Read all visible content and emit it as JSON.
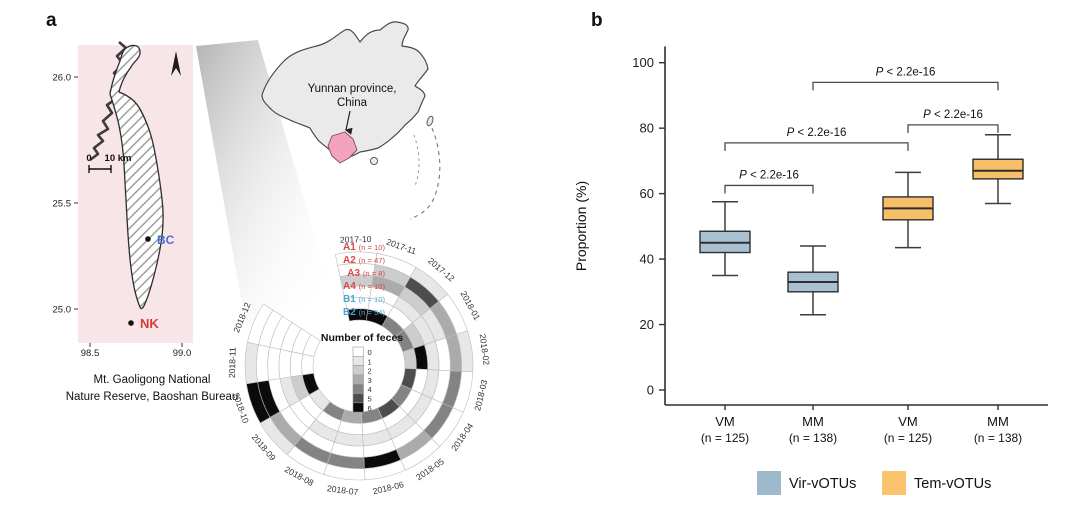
{
  "figure": {
    "panel_a_label": "a",
    "panel_b_label": "b"
  },
  "panel_a": {
    "map": {
      "bg_color": "#f8e5e7",
      "lat_ticks": [
        "26.0",
        "25.5",
        "25.0"
      ],
      "lon_ticks": [
        "98.5",
        "99.0"
      ],
      "scale_zero": "0",
      "scale_label": "10 km",
      "sites": [
        {
          "label": "BC",
          "color": "#4a6fd4"
        },
        {
          "label": "NK",
          "color": "#d93a3a"
        }
      ],
      "caption_line1": "Mt. Gaoligong National",
      "caption_line2": "Nature Reserve, Baoshan Bureau",
      "north_icon": "north-arrow"
    },
    "china_inset": {
      "label_line1": "Yunnan province,",
      "label_line2": "China",
      "fill": "#eaeaea",
      "outline": "#4a4a4a",
      "yunnan_fill": "#f3a3be"
    }
  },
  "chart_data": [
    {
      "type": "heatmap",
      "subtype": "circular",
      "legend_title": "Number of feces",
      "value_scale": {
        "min": 0,
        "max": 6,
        "labels": [
          "0",
          "1",
          "2",
          "3",
          "4",
          "5",
          "6"
        ],
        "colors": [
          "#ffffff",
          "#e7e7e7",
          "#cdcdcd",
          "#ababab",
          "#838383",
          "#4d4d4d",
          "#0b0b0b"
        ]
      },
      "months": [
        "2017-10",
        "2017-11",
        "2017-12",
        "2018-01",
        "2018-02",
        "2018-03",
        "2018-04",
        "2018-05",
        "2018-06",
        "2018-07",
        "2018-08",
        "2018-09",
        "2018-10",
        "2018-11",
        "2018-12"
      ],
      "rings": [
        {
          "name": "A1",
          "n_label": "(n = 10)",
          "label_color": "#d94848",
          "values": [
            0,
            0,
            1,
            0,
            1,
            0,
            0,
            0,
            0,
            0,
            0,
            1,
            6,
            1,
            0
          ]
        },
        {
          "name": "A2",
          "n_label": "(n = 47)",
          "label_color": "#d94848",
          "values": [
            0,
            2,
            5,
            3,
            3,
            4,
            4,
            3,
            6,
            4,
            4,
            3,
            6,
            0,
            0
          ]
        },
        {
          "name": "A3",
          "n_label": "(n = 8)",
          "label_color": "#d94848",
          "values": [
            2,
            3,
            2,
            1,
            0,
            0,
            0,
            0,
            0,
            0,
            0,
            0,
            0,
            0,
            0
          ]
        },
        {
          "name": "A4",
          "n_label": "(n = 10)",
          "label_color": "#d94848",
          "values": [
            0,
            0,
            1,
            1,
            1,
            1,
            1,
            1,
            1,
            1,
            1,
            0,
            1,
            0,
            0
          ]
        },
        {
          "name": "B1",
          "n_label": "(n = 10)",
          "label_color": "#4fa8cf",
          "values": [
            0,
            0,
            0,
            2,
            6,
            0,
            0,
            0,
            0,
            0,
            0,
            0,
            2,
            0,
            0
          ]
        },
        {
          "name": "B2",
          "n_label": "(n = 54)",
          "label_color": "#4fa8cf",
          "values": [
            6,
            6,
            4,
            4,
            2,
            5,
            4,
            5,
            4,
            3,
            4,
            1,
            6,
            0,
            0
          ]
        }
      ]
    },
    {
      "type": "boxplot",
      "ylabel": "Proportion (%)",
      "ylim": [
        0,
        105
      ],
      "yticks": [
        0,
        20,
        40,
        60,
        80,
        100
      ],
      "grid": false,
      "categories": [
        "VM",
        "MM",
        "VM",
        "MM"
      ],
      "category_sublabels": [
        "(n = 125)",
        "(n = 138)",
        "(n = 125)",
        "(n = 138)"
      ],
      "boxes": [
        {
          "group": "Vir-vOTUs",
          "whisker_low": 35,
          "q1": 42,
          "median": 45,
          "q3": 48.5,
          "whisker_high": 57.5
        },
        {
          "group": "Vir-vOTUs",
          "whisker_low": 23,
          "q1": 30,
          "median": 33,
          "q3": 36,
          "whisker_high": 44
        },
        {
          "group": "Tem-vOTUs",
          "whisker_low": 43.5,
          "q1": 52,
          "median": 55.5,
          "q3": 59,
          "whisker_high": 66.5
        },
        {
          "group": "Tem-vOTUs",
          "whisker_low": 57,
          "q1": 64.5,
          "median": 67,
          "q3": 70.5,
          "whisker_high": 78
        }
      ],
      "comparisons": [
        {
          "from": 0,
          "to": 1,
          "y": 62.5,
          "label": "P < 2.2e-16"
        },
        {
          "from": 0,
          "to": 2,
          "y": 75.5,
          "label": "P < 2.2e-16"
        },
        {
          "from": 2,
          "to": 3,
          "y": 81,
          "label": "P < 2.2e-16"
        },
        {
          "from": 1,
          "to": 3,
          "y": 94,
          "label": "P < 2.2e-16"
        }
      ],
      "box_colors": {
        "Vir-vOTUs": "#a9c0d3",
        "Tem-vOTUs": "#f7bf67"
      },
      "legend": [
        {
          "label": "Vir-vOTUs",
          "color": "#9fb9cc"
        },
        {
          "label": "Tem-vOTUs",
          "color": "#f9c46d"
        }
      ],
      "legend_position": "bottom"
    }
  ]
}
